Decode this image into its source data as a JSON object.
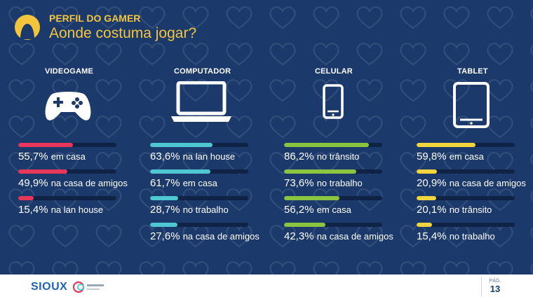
{
  "header": {
    "supertitle": "PERFIL DO GAMER",
    "title": "Aonde costuma jogar?"
  },
  "footer": {
    "brand": "SIOUX",
    "partner_logo": "blanc-logo",
    "page_label": "PÁG.",
    "page_number": "13"
  },
  "colors": {
    "background": "#1b3a6b",
    "title": "#f2c53d",
    "videogame": "#e8375a",
    "computador": "#4ec9d3",
    "celular": "#8bc53f",
    "tablet": "#f2d43d",
    "track": "#0f2347"
  },
  "icons": {
    "videogame": "gamepad-icon",
    "computador": "laptop-icon",
    "celular": "smartphone-icon",
    "tablet": "tablet-icon"
  },
  "chart_data": {
    "type": "bar",
    "orientation": "horizontal",
    "xlim": [
      0,
      100
    ],
    "unit": "%",
    "groups": [
      {
        "name": "VIDEOGAME",
        "items": [
          {
            "pct": "55,7%",
            "value": 55.7,
            "label": "em casa"
          },
          {
            "pct": "49,9%",
            "value": 49.9,
            "label": "na casa de amigos"
          },
          {
            "pct": "15,4%",
            "value": 15.4,
            "label": "na lan house"
          }
        ]
      },
      {
        "name": "COMPUTADOR",
        "items": [
          {
            "pct": "63,6%",
            "value": 63.6,
            "label": "na lan house"
          },
          {
            "pct": "61,7%",
            "value": 61.7,
            "label": "em casa"
          },
          {
            "pct": "28,7%",
            "value": 28.7,
            "label": "no trabalho"
          },
          {
            "pct": "27,6%",
            "value": 27.6,
            "label": "na casa de amigos"
          }
        ]
      },
      {
        "name": "CELULAR",
        "items": [
          {
            "pct": "86,2%",
            "value": 86.2,
            "label": "no trânsito"
          },
          {
            "pct": "73,6%",
            "value": 73.6,
            "label": "no trabalho"
          },
          {
            "pct": "56,2%",
            "value": 56.2,
            "label": "em casa"
          },
          {
            "pct": "42,3%",
            "value": 42.3,
            "label": "na casa de amigos"
          }
        ]
      },
      {
        "name": "TABLET",
        "items": [
          {
            "pct": "59,8%",
            "value": 59.8,
            "label": "em casa"
          },
          {
            "pct": "20,9%",
            "value": 20.9,
            "label": "na casa de amigos"
          },
          {
            "pct": "20,1%",
            "value": 20.1,
            "label": "no trânsito"
          },
          {
            "pct": "15,4%",
            "value": 15.4,
            "label": "no trabalho"
          }
        ]
      }
    ]
  }
}
